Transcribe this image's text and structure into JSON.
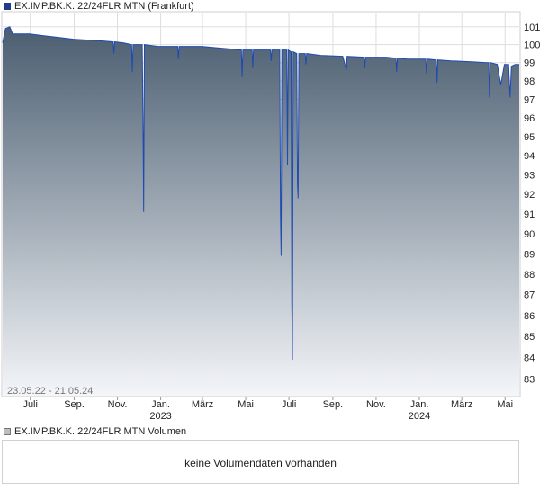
{
  "price_legend": "EX.IMP.BK.K. 22/24FLR MTN (Frankfurt)",
  "volume_legend": "EX.IMP.BK.K. 22/24FLR MTN Volumen",
  "volume_message": "keine Volumendaten vorhanden",
  "date_range": "23.05.22 - 21.05.24",
  "colors": {
    "line": "#1f4bb0",
    "fill_top": "#4a5d70",
    "fill_bottom": "#f4f6f9",
    "grid": "#dddddd"
  },
  "chart_data": {
    "type": "area",
    "title": "EX.IMP.BK.K. 22/24FLR MTN (Frankfurt)",
    "xlabel": "",
    "ylabel": "",
    "ylim": [
      82.2,
      101.8
    ],
    "y_scale": "log",
    "xlim": [
      "2022-05-23",
      "2024-05-21"
    ],
    "y_ticks": [
      83,
      84,
      85,
      86,
      87,
      88,
      89,
      90,
      91,
      92,
      93,
      94,
      95,
      96,
      97,
      98,
      99,
      100,
      101
    ],
    "x_ticks": [
      {
        "date": "2022-07-01",
        "label": "Juli",
        "year": ""
      },
      {
        "date": "2022-09-01",
        "label": "Sep.",
        "year": ""
      },
      {
        "date": "2022-11-01",
        "label": "Nov.",
        "year": ""
      },
      {
        "date": "2023-01-01",
        "label": "Jan.",
        "year": "2023"
      },
      {
        "date": "2023-03-01",
        "label": "März",
        "year": ""
      },
      {
        "date": "2023-05-01",
        "label": "Mai",
        "year": ""
      },
      {
        "date": "2023-07-01",
        "label": "Juli",
        "year": ""
      },
      {
        "date": "2023-09-01",
        "label": "Sep.",
        "year": ""
      },
      {
        "date": "2023-11-01",
        "label": "Nov.",
        "year": ""
      },
      {
        "date": "2024-01-01",
        "label": "Jan.",
        "year": "2024"
      },
      {
        "date": "2024-03-01",
        "label": "März",
        "year": ""
      },
      {
        "date": "2024-05-01",
        "label": "Mai",
        "year": ""
      }
    ],
    "series": [
      {
        "name": "EX.IMP.BK.K. 22/24FLR MTN",
        "points": [
          [
            "2022-05-23",
            100.1
          ],
          [
            "2022-05-27",
            100.9
          ],
          [
            "2022-06-02",
            101.0
          ],
          [
            "2022-06-06",
            100.6
          ],
          [
            "2022-06-30",
            100.6
          ],
          [
            "2022-07-20",
            100.5
          ],
          [
            "2022-08-10",
            100.4
          ],
          [
            "2022-08-31",
            100.3
          ],
          [
            "2022-09-21",
            100.25
          ],
          [
            "2022-10-12",
            100.2
          ],
          [
            "2022-10-26",
            100.15
          ],
          [
            "2022-10-27",
            99.5
          ],
          [
            "2022-10-28",
            100.15
          ],
          [
            "2022-11-09",
            100.1
          ],
          [
            "2022-11-21",
            100.0
          ],
          [
            "2022-11-22",
            98.5
          ],
          [
            "2022-11-23",
            100.0
          ],
          [
            "2022-12-06",
            100.0
          ],
          [
            "2022-12-07",
            96.2
          ],
          [
            "2022-12-08",
            91.1
          ],
          [
            "2022-12-09",
            100.0
          ],
          [
            "2022-12-28",
            99.9
          ],
          [
            "2023-01-25",
            99.9
          ],
          [
            "2023-01-26",
            99.2
          ],
          [
            "2023-01-27",
            99.9
          ],
          [
            "2023-02-28",
            99.9
          ],
          [
            "2023-03-28",
            99.8
          ],
          [
            "2023-04-25",
            99.7
          ],
          [
            "2023-04-26",
            98.2
          ],
          [
            "2023-04-27",
            99.7
          ],
          [
            "2023-05-10",
            99.7
          ],
          [
            "2023-05-11",
            98.7
          ],
          [
            "2023-05-12",
            99.7
          ],
          [
            "2023-06-05",
            99.7
          ],
          [
            "2023-06-06",
            99.1
          ],
          [
            "2023-06-07",
            99.7
          ],
          [
            "2023-06-18",
            99.7
          ],
          [
            "2023-06-19",
            91.0
          ],
          [
            "2023-06-20",
            88.9
          ],
          [
            "2023-06-21",
            99.7
          ],
          [
            "2023-06-28",
            99.7
          ],
          [
            "2023-06-29",
            93.5
          ],
          [
            "2023-06-30",
            99.7
          ],
          [
            "2023-07-04",
            99.6
          ],
          [
            "2023-07-05",
            86.5
          ],
          [
            "2023-07-06",
            83.9
          ],
          [
            "2023-07-07",
            99.6
          ],
          [
            "2023-07-12",
            99.5
          ],
          [
            "2023-07-13",
            92.5
          ],
          [
            "2023-07-14",
            91.8
          ],
          [
            "2023-07-15",
            99.5
          ],
          [
            "2023-07-24",
            99.5
          ],
          [
            "2023-07-25",
            98.9
          ],
          [
            "2023-07-26",
            99.5
          ],
          [
            "2023-08-15",
            99.4
          ],
          [
            "2023-09-15",
            99.35
          ],
          [
            "2023-09-20",
            98.6
          ],
          [
            "2023-09-21",
            99.35
          ],
          [
            "2023-10-15",
            99.3
          ],
          [
            "2023-10-16",
            98.7
          ],
          [
            "2023-10-17",
            99.3
          ],
          [
            "2023-11-15",
            99.3
          ],
          [
            "2023-11-29",
            99.25
          ],
          [
            "2023-11-30",
            98.5
          ],
          [
            "2023-12-01",
            99.25
          ],
          [
            "2023-12-15",
            99.2
          ],
          [
            "2024-01-10",
            99.2
          ],
          [
            "2024-01-11",
            98.4
          ],
          [
            "2024-01-12",
            99.2
          ],
          [
            "2024-01-25",
            99.15
          ],
          [
            "2024-01-26",
            97.9
          ],
          [
            "2024-01-27",
            99.15
          ],
          [
            "2024-02-15",
            99.1
          ],
          [
            "2024-03-15",
            99.05
          ],
          [
            "2024-04-05",
            99.0
          ],
          [
            "2024-04-08",
            99.0
          ],
          [
            "2024-04-09",
            97.1
          ],
          [
            "2024-04-10",
            99.0
          ],
          [
            "2024-04-20",
            98.9
          ],
          [
            "2024-04-25",
            97.8
          ],
          [
            "2024-04-30",
            98.9
          ],
          [
            "2024-05-06",
            98.9
          ],
          [
            "2024-05-08",
            97.1
          ],
          [
            "2024-05-10",
            98.8
          ],
          [
            "2024-05-15",
            98.9
          ],
          [
            "2024-05-21",
            98.9
          ]
        ]
      }
    ]
  }
}
